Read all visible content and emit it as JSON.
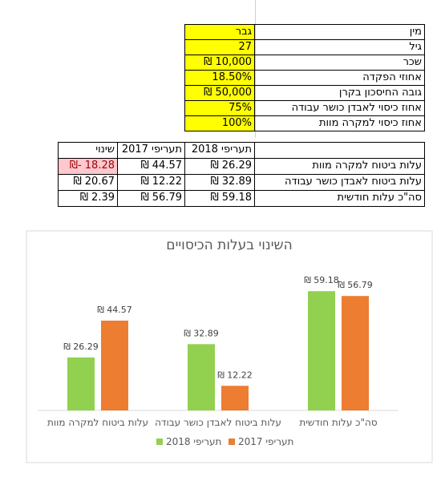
{
  "inputs": {
    "rows": [
      {
        "label": "מין",
        "value": "גבר"
      },
      {
        "label": "גיל",
        "value": "27"
      },
      {
        "label": "שכר",
        "value": "₪ 10,000"
      },
      {
        "label": "אחוזי הפקדה",
        "value": "18.50%"
      },
      {
        "label": "גובה החיסכון בקרן",
        "value": "₪ 50,000"
      },
      {
        "label": "אחוז כיסוי לאבדן כושר עבודה",
        "value": "75%"
      },
      {
        "label": "אחוז כיסוי למקרה מוות",
        "value": "100%"
      }
    ]
  },
  "comparison": {
    "headers": [
      "תעריפי 2018",
      "תעריפי 2017",
      "שינוי"
    ],
    "rows": [
      {
        "label": "עלות ביטוח למקרה מוות",
        "cells": [
          "₪ 26.29",
          "₪ 44.57",
          "₪- 18.28"
        ]
      },
      {
        "label": "עלות ביטוח לאבדן כושר עבודה",
        "cells": [
          "₪ 32.89",
          "₪ 12.22",
          "₪ 20.67"
        ]
      },
      {
        "label": "סה\"כ עלות חודשית",
        "cells": [
          "₪ 59.18",
          "₪ 56.79",
          "₪ 2.39"
        ]
      }
    ]
  },
  "chart_data": {
    "type": "bar",
    "title": "השינוי בעלות הכיסויים",
    "categories": [
      "עלות ביטוח למקרה מוות",
      "עלות ביטוח לאבדן כושר עבודה",
      "סה\"כ עלות חודשית"
    ],
    "series": [
      {
        "name": "תעריפי 2018",
        "color": "#92d050",
        "values": [
          26.29,
          32.89,
          59.18
        ],
        "value_labels": [
          "₪ 26.29",
          "₪ 32.89",
          "₪ 59.18"
        ]
      },
      {
        "name": "תעריפי 2017",
        "color": "#ed7d31",
        "values": [
          44.57,
          12.22,
          56.79
        ],
        "value_labels": [
          "₪ 44.57",
          "₪ 12.22",
          "₪ 56.79"
        ]
      }
    ],
    "ylim": [
      0,
      70
    ],
    "legend": "bottom"
  }
}
